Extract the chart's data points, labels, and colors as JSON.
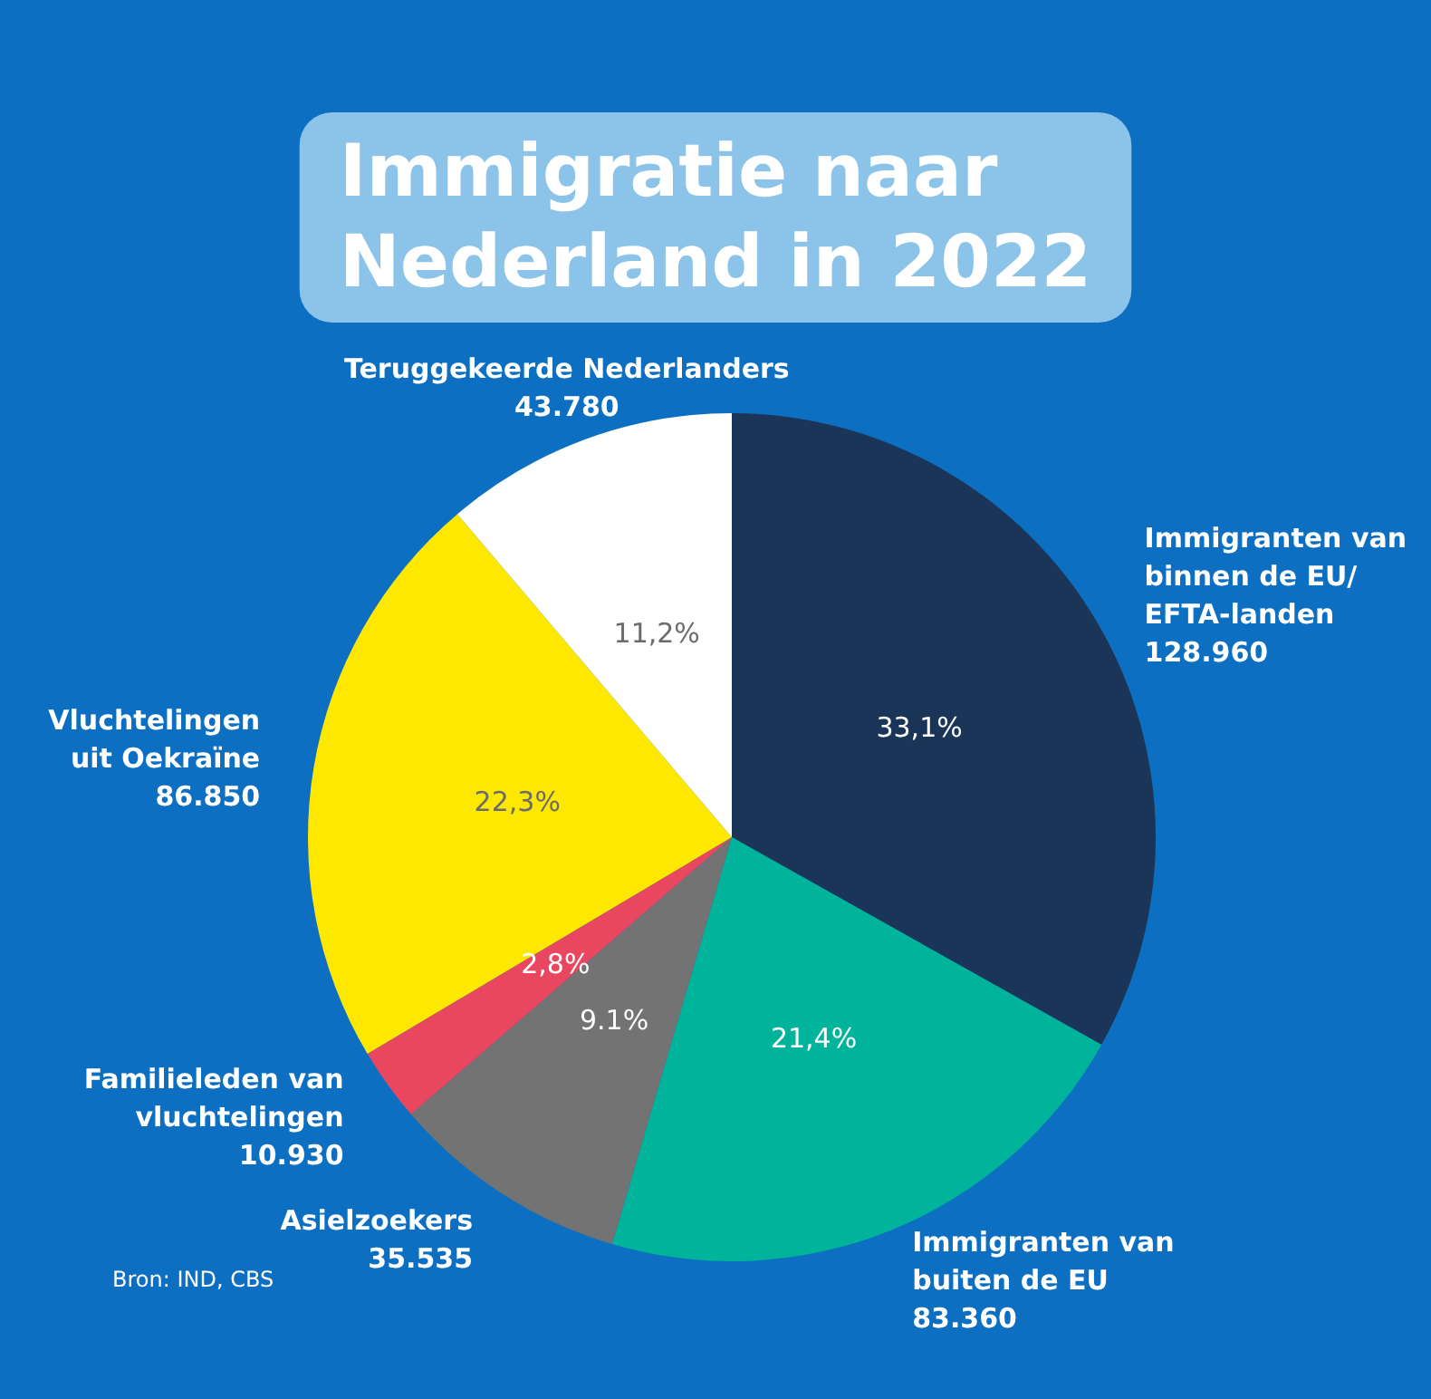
{
  "chart_data": {
    "type": "pie",
    "title": "Immigratie naar\nNederland in 2022",
    "categories": [
      "Immigranten van\nbinnen de EU/\nEFTA-landen\n128.960",
      "Immigranten van\nbuiten de EU\n83.360",
      "Asielzoekers\n35.535",
      "Familieleden van\nvluchtelingen\n10.930",
      "Vluchtelingen\nuit Oekraïne\n86.850",
      "Teruggekeerde Nederlanders\n43.780"
    ],
    "values": [
      33.1,
      21.4,
      9.1,
      2.8,
      22.3,
      11.2
    ],
    "colors": [
      "#1b3558",
      "#00b39b",
      "#737373",
      "#e8475f",
      "#fee800",
      "#ffffff"
    ],
    "value_labels": [
      "33,1%",
      "21,4%",
      "9.1%",
      "2,8%",
      "22,3%",
      "11,2%"
    ],
    "data_labels": true,
    "annotations": [
      "Bron: IND, CBS"
    ]
  }
}
